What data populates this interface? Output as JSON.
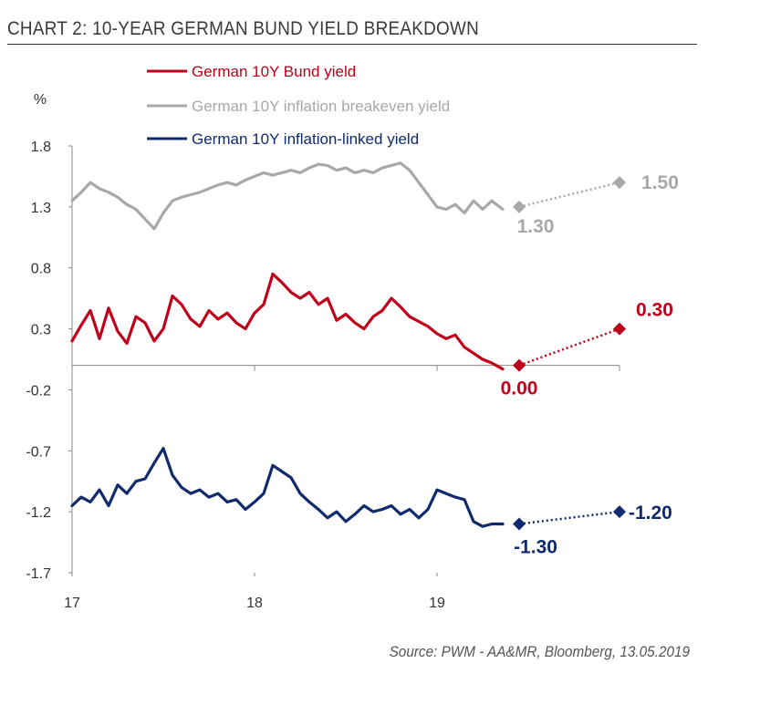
{
  "title": "CHART 2: 10-YEAR GERMAN BUND YIELD BREAKDOWN",
  "source": "Source: PWM - AA&MR, Bloomberg, 13.05.2019",
  "chart_data": {
    "type": "line",
    "ylabel": "%",
    "ylim": [
      -1.7,
      1.8
    ],
    "yticks": [
      1.8,
      1.3,
      0.8,
      0.3,
      -0.2,
      -0.7,
      -1.2,
      -1.7
    ],
    "ytick_labels": [
      "1.8",
      "1.3",
      "0.8",
      "0.3",
      "-0.2",
      "-0.7",
      "-1.2",
      "-1.7"
    ],
    "xlim": [
      17,
      20
    ],
    "xticks": [
      17,
      18,
      19
    ],
    "xtick_labels": [
      "17",
      "18",
      "19"
    ],
    "legend_position": "top",
    "series": [
      {
        "name": "German 10Y Bund yield",
        "color": "#c0001a",
        "x": [
          17.0,
          17.05,
          17.1,
          17.15,
          17.2,
          17.25,
          17.3,
          17.35,
          17.4,
          17.45,
          17.5,
          17.55,
          17.6,
          17.65,
          17.7,
          17.75,
          17.8,
          17.85,
          17.9,
          17.95,
          18.0,
          18.05,
          18.1,
          18.15,
          18.2,
          18.25,
          18.3,
          18.35,
          18.4,
          18.45,
          18.5,
          18.55,
          18.6,
          18.65,
          18.7,
          18.75,
          18.8,
          18.85,
          18.9,
          18.95,
          19.0,
          19.05,
          19.1,
          19.15,
          19.2,
          19.25,
          19.3,
          19.36
        ],
        "values": [
          0.2,
          0.33,
          0.45,
          0.22,
          0.47,
          0.28,
          0.18,
          0.4,
          0.35,
          0.2,
          0.3,
          0.57,
          0.5,
          0.38,
          0.32,
          0.45,
          0.38,
          0.43,
          0.35,
          0.3,
          0.43,
          0.5,
          0.75,
          0.68,
          0.6,
          0.55,
          0.6,
          0.5,
          0.55,
          0.37,
          0.42,
          0.35,
          0.3,
          0.4,
          0.45,
          0.55,
          0.48,
          0.4,
          0.36,
          0.32,
          0.26,
          0.22,
          0.25,
          0.15,
          0.1,
          0.05,
          0.02,
          -0.03
        ]
      },
      {
        "name": "German 10Y inflation breakeven yield",
        "color": "#a8a8a8",
        "x": [
          17.0,
          17.05,
          17.1,
          17.15,
          17.2,
          17.25,
          17.3,
          17.35,
          17.4,
          17.45,
          17.5,
          17.55,
          17.6,
          17.65,
          17.7,
          17.75,
          17.8,
          17.85,
          17.9,
          17.95,
          18.0,
          18.05,
          18.1,
          18.15,
          18.2,
          18.25,
          18.3,
          18.35,
          18.4,
          18.45,
          18.5,
          18.55,
          18.6,
          18.65,
          18.7,
          18.75,
          18.8,
          18.85,
          18.9,
          18.95,
          19.0,
          19.05,
          19.1,
          19.15,
          19.2,
          19.25,
          19.3,
          19.36
        ],
        "values": [
          1.35,
          1.42,
          1.5,
          1.45,
          1.42,
          1.38,
          1.32,
          1.28,
          1.2,
          1.12,
          1.25,
          1.35,
          1.38,
          1.4,
          1.42,
          1.45,
          1.48,
          1.5,
          1.48,
          1.52,
          1.55,
          1.58,
          1.56,
          1.58,
          1.6,
          1.58,
          1.62,
          1.65,
          1.64,
          1.6,
          1.62,
          1.58,
          1.6,
          1.58,
          1.62,
          1.64,
          1.66,
          1.6,
          1.5,
          1.4,
          1.3,
          1.28,
          1.32,
          1.25,
          1.35,
          1.28,
          1.35,
          1.28
        ]
      },
      {
        "name": "German 10Y inflation-linked yield",
        "color": "#102a6e",
        "x": [
          17.0,
          17.05,
          17.1,
          17.15,
          17.2,
          17.25,
          17.3,
          17.35,
          17.4,
          17.45,
          17.5,
          17.55,
          17.6,
          17.65,
          17.7,
          17.75,
          17.8,
          17.85,
          17.9,
          17.95,
          18.0,
          18.05,
          18.1,
          18.15,
          18.2,
          18.25,
          18.3,
          18.35,
          18.4,
          18.45,
          18.5,
          18.55,
          18.6,
          18.65,
          18.7,
          18.75,
          18.8,
          18.85,
          18.9,
          18.95,
          19.0,
          19.05,
          19.1,
          19.15,
          19.2,
          19.25,
          19.3,
          19.36
        ],
        "values": [
          -1.15,
          -1.08,
          -1.12,
          -1.02,
          -1.15,
          -0.98,
          -1.05,
          -0.95,
          -0.93,
          -0.8,
          -0.68,
          -0.9,
          -1.0,
          -1.05,
          -1.02,
          -1.08,
          -1.05,
          -1.12,
          -1.1,
          -1.18,
          -1.12,
          -1.05,
          -0.82,
          -0.87,
          -0.92,
          -1.05,
          -1.12,
          -1.18,
          -1.25,
          -1.2,
          -1.28,
          -1.22,
          -1.15,
          -1.2,
          -1.18,
          -1.15,
          -1.22,
          -1.18,
          -1.25,
          -1.18,
          -1.02,
          -1.05,
          -1.08,
          -1.1,
          -1.28,
          -1.32,
          -1.3,
          -1.3
        ]
      }
    ],
    "forecasts": [
      {
        "series": "German 10Y Bund yield",
        "color": "#c0001a",
        "from": 0.0,
        "to": 0.3,
        "from_label": "0.00",
        "to_label": "0.30"
      },
      {
        "series": "German 10Y inflation breakeven yield",
        "color": "#a8a8a8",
        "from": 1.3,
        "to": 1.5,
        "from_label": "1.30",
        "to_label": "1.50"
      },
      {
        "series": "German 10Y inflation-linked yield",
        "color": "#102a6e",
        "from": -1.3,
        "to": -1.2,
        "from_label": "-1.30",
        "to_label": "-1.20"
      }
    ],
    "forecast_x": [
      19.45,
      20.0
    ]
  }
}
